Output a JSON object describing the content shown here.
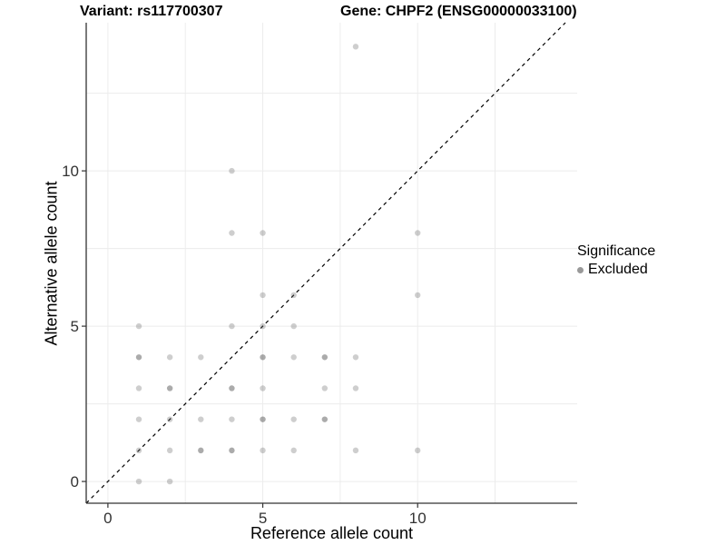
{
  "figure": {
    "title_left": "Variant: rs117700307",
    "title_right": "Gene: CHPF2 (ENSG00000033100)"
  },
  "chart_data": {
    "type": "scatter",
    "title": "Variant: rs117700307 — Gene: CHPF2 (ENSG00000033100)",
    "xlabel": "Reference allele count",
    "ylabel": "Alternative allele count",
    "x_ticks": [
      0,
      5,
      10
    ],
    "y_ticks": [
      0,
      5,
      10
    ],
    "minor_x": [
      2.5,
      7.5,
      12.5
    ],
    "minor_y": [
      2.5,
      7.5,
      12.5
    ],
    "xlim": [
      -0.7,
      15.15
    ],
    "ylim": [
      -0.7,
      14.77
    ],
    "grid": true,
    "identity_line": {
      "style": "dashed",
      "from": [
        -0.7,
        -0.7
      ],
      "to": [
        14.77,
        14.77
      ]
    },
    "series_name": "Excluded",
    "points": [
      {
        "x": 8,
        "y": 14,
        "n": 1
      },
      {
        "x": 4,
        "y": 10,
        "n": 1
      },
      {
        "x": 4,
        "y": 8,
        "n": 1
      },
      {
        "x": 5,
        "y": 8,
        "n": 1
      },
      {
        "x": 10,
        "y": 8,
        "n": 1
      },
      {
        "x": 5,
        "y": 6,
        "n": 1
      },
      {
        "x": 6,
        "y": 6,
        "n": 1
      },
      {
        "x": 10,
        "y": 6,
        "n": 1
      },
      {
        "x": 1,
        "y": 5,
        "n": 1
      },
      {
        "x": 4,
        "y": 5,
        "n": 1
      },
      {
        "x": 5,
        "y": 5,
        "n": 1
      },
      {
        "x": 6,
        "y": 5,
        "n": 1
      },
      {
        "x": 1,
        "y": 4,
        "n": 2
      },
      {
        "x": 2,
        "y": 4,
        "n": 1
      },
      {
        "x": 3,
        "y": 4,
        "n": 1
      },
      {
        "x": 5,
        "y": 4,
        "n": 2
      },
      {
        "x": 6,
        "y": 4,
        "n": 1
      },
      {
        "x": 7,
        "y": 4,
        "n": 2
      },
      {
        "x": 8,
        "y": 4,
        "n": 1
      },
      {
        "x": 1,
        "y": 3,
        "n": 1
      },
      {
        "x": 2,
        "y": 3,
        "n": 2
      },
      {
        "x": 4,
        "y": 3,
        "n": 2
      },
      {
        "x": 5,
        "y": 3,
        "n": 1
      },
      {
        "x": 7,
        "y": 3,
        "n": 1
      },
      {
        "x": 8,
        "y": 3,
        "n": 1
      },
      {
        "x": 1,
        "y": 2,
        "n": 1
      },
      {
        "x": 2,
        "y": 2,
        "n": 1
      },
      {
        "x": 3,
        "y": 2,
        "n": 1
      },
      {
        "x": 4,
        "y": 2,
        "n": 1
      },
      {
        "x": 5,
        "y": 2,
        "n": 2
      },
      {
        "x": 6,
        "y": 2,
        "n": 1
      },
      {
        "x": 7,
        "y": 2,
        "n": 2
      },
      {
        "x": 1,
        "y": 1,
        "n": 1
      },
      {
        "x": 2,
        "y": 1,
        "n": 1
      },
      {
        "x": 3,
        "y": 1,
        "n": 2
      },
      {
        "x": 4,
        "y": 1,
        "n": 2
      },
      {
        "x": 5,
        "y": 1,
        "n": 1
      },
      {
        "x": 6,
        "y": 1,
        "n": 1
      },
      {
        "x": 8,
        "y": 1,
        "n": 1
      },
      {
        "x": 10,
        "y": 1,
        "n": 1
      },
      {
        "x": 1,
        "y": 0,
        "n": 1
      },
      {
        "x": 2,
        "y": 0,
        "n": 1
      }
    ],
    "legend": {
      "position": "right",
      "title": "Significance",
      "entries": [
        {
          "label": "Excluded",
          "color": "#999999"
        }
      ]
    },
    "colors": {
      "point": "#666666",
      "grid": "#ececec",
      "axis": "#333333",
      "tick_text": "#333333",
      "dashed_line": "#000000",
      "background": "#ffffff"
    }
  }
}
